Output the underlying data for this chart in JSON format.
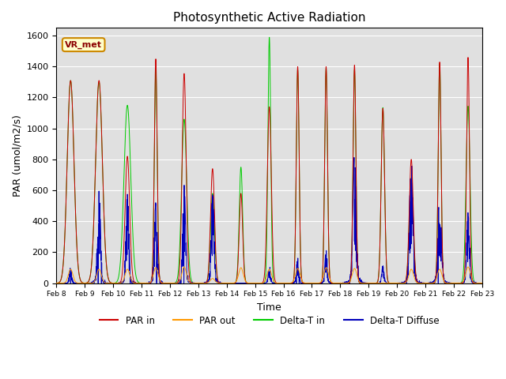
{
  "title": "Photosynthetic Active Radiation",
  "xlabel": "Time",
  "ylabel": "PAR (umol/m2/s)",
  "annotation": "VR_met",
  "ylim": [
    0,
    1650
  ],
  "yticks": [
    0,
    200,
    400,
    600,
    800,
    1000,
    1200,
    1400,
    1600
  ],
  "colors": {
    "par_in": "#cc0000",
    "par_out": "#ff9900",
    "delta_t_in": "#00cc00",
    "delta_t_diffuse": "#0000bb"
  },
  "legend_labels": [
    "PAR in",
    "PAR out",
    "Delta-T in",
    "Delta-T Diffuse"
  ],
  "background_color": "#e0e0e0",
  "n_days": 15,
  "start_day": 8,
  "points_per_day": 288,
  "xtick_labels": [
    "Feb 8",
    "Feb 9",
    "Feb 10",
    "Feb 11",
    "Feb 12",
    "Feb 13",
    "Feb 14",
    "Feb 15",
    "Feb 16",
    "Feb 17",
    "Feb 18",
    "Feb 19",
    "Feb 20",
    "Feb 21",
    "Feb 22",
    "Feb 23"
  ]
}
